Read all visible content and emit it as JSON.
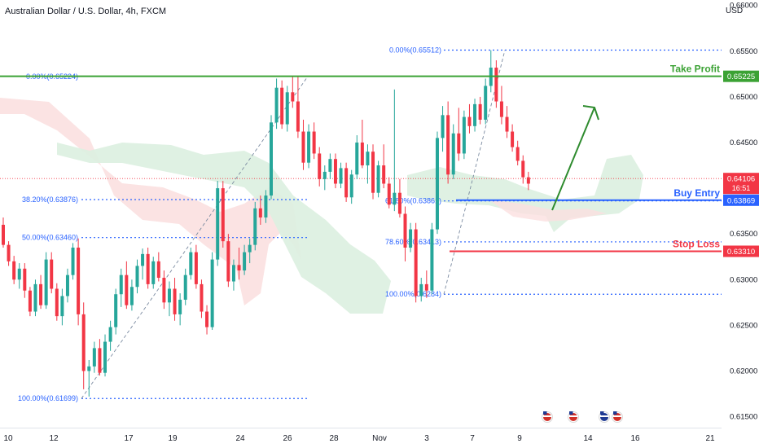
{
  "header": {
    "title": "Australian Dollar / U.S. Dollar, 4h, FXCM",
    "currency": "USD"
  },
  "colors": {
    "up": "#26a69a",
    "down": "#f23645",
    "take_profit": "#3ba234",
    "entry": "#2962ff",
    "stop": "#f23645",
    "fib": "#2962ff",
    "cloud_bull": "#dcefe0",
    "cloud_bear": "#fbe0e0",
    "arrow": "#2e8b2e"
  },
  "chart_data": {
    "type": "candlestick",
    "y_axis": {
      "min": 0.6138,
      "max": 0.6606,
      "side": "right",
      "ticks": [
        "0.66000",
        "0.65500",
        "0.65000",
        "0.64500",
        "0.64000",
        "0.63500",
        "0.63000",
        "0.62500",
        "0.62000",
        "0.61500"
      ]
    },
    "x_axis": {
      "ticks": [
        "10",
        "12",
        "17",
        "19",
        "24",
        "26",
        "28",
        "Nov",
        "3",
        "7",
        "9",
        "14",
        "16",
        "21"
      ]
    },
    "candles": [
      [
        0.636,
        0.6368,
        0.6335,
        0.6338
      ],
      [
        0.6338,
        0.6342,
        0.6315,
        0.632
      ],
      [
        0.632,
        0.6326,
        0.6295,
        0.63
      ],
      [
        0.63,
        0.6318,
        0.629,
        0.6312
      ],
      [
        0.6312,
        0.6318,
        0.628,
        0.6288
      ],
      [
        0.6288,
        0.6292,
        0.626,
        0.6265
      ],
      [
        0.6265,
        0.63,
        0.626,
        0.6295
      ],
      [
        0.6295,
        0.6305,
        0.6268,
        0.6272
      ],
      [
        0.6272,
        0.633,
        0.6268,
        0.6322
      ],
      [
        0.6322,
        0.633,
        0.6285,
        0.629
      ],
      [
        0.629,
        0.6296,
        0.6255,
        0.626
      ],
      [
        0.626,
        0.629,
        0.625,
        0.6282
      ],
      [
        0.6282,
        0.6312,
        0.6275,
        0.6305
      ],
      [
        0.6305,
        0.634,
        0.63,
        0.6335
      ],
      [
        0.6335,
        0.6345,
        0.625,
        0.6262
      ],
      [
        0.6262,
        0.6275,
        0.618,
        0.62
      ],
      [
        0.62,
        0.6212,
        0.6172,
        0.6205
      ],
      [
        0.6205,
        0.6232,
        0.6198,
        0.6225
      ],
      [
        0.6225,
        0.6235,
        0.6195,
        0.6198
      ],
      [
        0.6198,
        0.624,
        0.6194,
        0.6232
      ],
      [
        0.6232,
        0.6255,
        0.6222,
        0.6248
      ],
      [
        0.6248,
        0.629,
        0.624,
        0.6284
      ],
      [
        0.6284,
        0.6312,
        0.627,
        0.6305
      ],
      [
        0.6305,
        0.632,
        0.6268,
        0.6272
      ],
      [
        0.6272,
        0.63,
        0.6266,
        0.6292
      ],
      [
        0.6292,
        0.6322,
        0.6285,
        0.6315
      ],
      [
        0.6315,
        0.6334,
        0.63,
        0.6328
      ],
      [
        0.6328,
        0.6335,
        0.629,
        0.6295
      ],
      [
        0.6295,
        0.6325,
        0.629,
        0.632
      ],
      [
        0.632,
        0.633,
        0.6298,
        0.6302
      ],
      [
        0.6302,
        0.631,
        0.6268,
        0.6275
      ],
      [
        0.6275,
        0.6298,
        0.626,
        0.629
      ],
      [
        0.629,
        0.6302,
        0.6255,
        0.6262
      ],
      [
        0.6262,
        0.6285,
        0.625,
        0.6278
      ],
      [
        0.6278,
        0.6312,
        0.6272,
        0.6305
      ],
      [
        0.6305,
        0.6335,
        0.63,
        0.633
      ],
      [
        0.633,
        0.6338,
        0.629,
        0.6295
      ],
      [
        0.6295,
        0.63,
        0.6258,
        0.6265
      ],
      [
        0.6265,
        0.6272,
        0.624,
        0.6248
      ],
      [
        0.6248,
        0.633,
        0.6245,
        0.6322
      ],
      [
        0.6322,
        0.6408,
        0.6315,
        0.64
      ],
      [
        0.64,
        0.6408,
        0.6335,
        0.6342
      ],
      [
        0.6342,
        0.635,
        0.6292,
        0.6298
      ],
      [
        0.6298,
        0.6322,
        0.6288,
        0.6316
      ],
      [
        0.6316,
        0.6335,
        0.63,
        0.631
      ],
      [
        0.631,
        0.6338,
        0.6305,
        0.633
      ],
      [
        0.633,
        0.6345,
        0.6318,
        0.6338
      ],
      [
        0.6338,
        0.6385,
        0.6332,
        0.6378
      ],
      [
        0.6378,
        0.6392,
        0.636,
        0.6368
      ],
      [
        0.6368,
        0.6398,
        0.6362,
        0.6392
      ],
      [
        0.6392,
        0.648,
        0.6388,
        0.6472
      ],
      [
        0.6472,
        0.652,
        0.6465,
        0.651
      ],
      [
        0.651,
        0.6518,
        0.6465,
        0.647
      ],
      [
        0.647,
        0.6512,
        0.6462,
        0.6505
      ],
      [
        0.6505,
        0.6522,
        0.6488,
        0.6495
      ],
      [
        0.6495,
        0.6522,
        0.6455,
        0.6462
      ],
      [
        0.6462,
        0.6475,
        0.642,
        0.6428
      ],
      [
        0.6428,
        0.647,
        0.6422,
        0.6462
      ],
      [
        0.6462,
        0.6472,
        0.6432,
        0.6438
      ],
      [
        0.6438,
        0.6445,
        0.6402,
        0.641
      ],
      [
        0.641,
        0.6425,
        0.6398,
        0.6418
      ],
      [
        0.6418,
        0.6438,
        0.641,
        0.6432
      ],
      [
        0.6432,
        0.6438,
        0.64,
        0.6405
      ],
      [
        0.6405,
        0.6428,
        0.64,
        0.6422
      ],
      [
        0.6422,
        0.6428,
        0.6385,
        0.639
      ],
      [
        0.639,
        0.642,
        0.6383,
        0.6415
      ],
      [
        0.6415,
        0.6458,
        0.641,
        0.645
      ],
      [
        0.645,
        0.6475,
        0.6422,
        0.6425
      ],
      [
        0.6425,
        0.6448,
        0.6405,
        0.644
      ],
      [
        0.644,
        0.6448,
        0.6388,
        0.6395
      ],
      [
        0.6395,
        0.643,
        0.639,
        0.6425
      ],
      [
        0.6425,
        0.6448,
        0.64,
        0.6405
      ],
      [
        0.6405,
        0.6412,
        0.6378,
        0.6382
      ],
      [
        0.6382,
        0.6508,
        0.6375,
        0.6395
      ],
      [
        0.6395,
        0.641,
        0.6368,
        0.6372
      ],
      [
        0.6372,
        0.638,
        0.632,
        0.6335
      ],
      [
        0.6335,
        0.6362,
        0.633,
        0.6355
      ],
      [
        0.6355,
        0.6362,
        0.6275,
        0.6282
      ],
      [
        0.6282,
        0.6302,
        0.6276,
        0.6295
      ],
      [
        0.6295,
        0.631,
        0.628,
        0.6288
      ],
      [
        0.6288,
        0.6362,
        0.6284,
        0.6355
      ],
      [
        0.6355,
        0.6462,
        0.635,
        0.6455
      ],
      [
        0.6455,
        0.649,
        0.644,
        0.648
      ],
      [
        0.648,
        0.6495,
        0.6405,
        0.6415
      ],
      [
        0.6415,
        0.647,
        0.641,
        0.646
      ],
      [
        0.646,
        0.6488,
        0.643,
        0.6438
      ],
      [
        0.6438,
        0.6485,
        0.6432,
        0.6478
      ],
      [
        0.6478,
        0.6492,
        0.646,
        0.6468
      ],
      [
        0.6468,
        0.6498,
        0.6462,
        0.6492
      ],
      [
        0.6492,
        0.65,
        0.647,
        0.6475
      ],
      [
        0.6475,
        0.652,
        0.647,
        0.6512
      ],
      [
        0.6512,
        0.6551,
        0.6505,
        0.6532
      ],
      [
        0.6532,
        0.654,
        0.6488,
        0.6495
      ],
      [
        0.6495,
        0.6512,
        0.647,
        0.6478
      ],
      [
        0.6478,
        0.649,
        0.6455,
        0.6462
      ],
      [
        0.6462,
        0.647,
        0.644,
        0.6445
      ],
      [
        0.6445,
        0.6452,
        0.6425,
        0.643
      ],
      [
        0.643,
        0.6436,
        0.6405,
        0.6412
      ],
      [
        0.6412,
        0.6418,
        0.6398,
        0.6405
      ]
    ],
    "levels": [
      {
        "name": "Take Profit",
        "price": 0.65225,
        "label": "0.65225",
        "color": "#3ba234"
      },
      {
        "name": "Buy Entry",
        "price": 0.63869,
        "label": "0.63869",
        "color": "#2962ff"
      },
      {
        "name": "Stop Loss",
        "price": 0.6331,
        "label": "0.63310",
        "color": "#f23645"
      }
    ],
    "current_price": {
      "price": 0.64106,
      "label": "0.64106",
      "countdown": "16:51"
    },
    "fib_left": [
      {
        "label": "0.00%(0.65224)",
        "price": 0.65224
      },
      {
        "label": "38.20%(0.63876)",
        "price": 0.63876
      },
      {
        "label": "50.00%(0.63460)",
        "price": 0.6346
      },
      {
        "label": "100.00%(0.61699)",
        "price": 0.61699
      }
    ],
    "fib_right": [
      {
        "label": "0.00%(0.65512)",
        "price": 0.65512
      },
      {
        "label": "61.80%(0.63861)",
        "price": 0.63861
      },
      {
        "label": "78.60%(0.63413)",
        "price": 0.63413
      },
      {
        "label": "100.00%(0.6284)",
        "price": 0.6284
      }
    ]
  }
}
